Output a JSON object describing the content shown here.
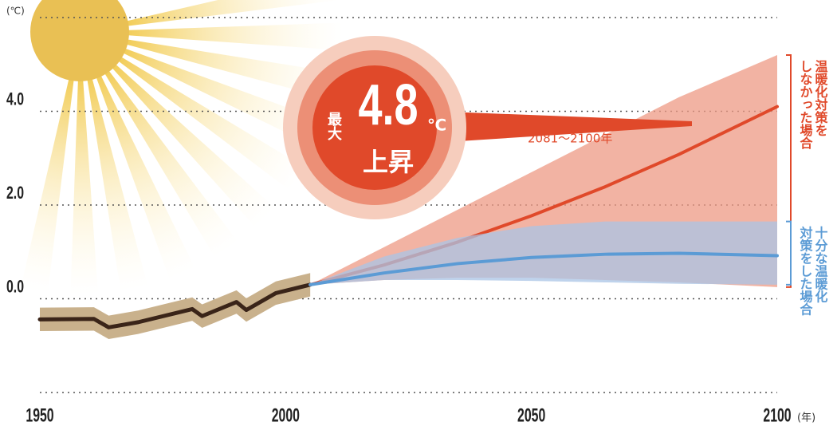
{
  "chart_data": {
    "type": "line",
    "y_unit_label": "(℃)",
    "x_unit_label": "(年)",
    "xlim": [
      1950,
      2100
    ],
    "xticks": [
      1950,
      2000,
      2050,
      2100
    ],
    "ylim": [
      -2,
      6
    ],
    "yticks": [
      {
        "value": 0,
        "label": "0.0"
      },
      {
        "value": 2,
        "label": "2.0"
      },
      {
        "value": 4,
        "label": "4.0"
      }
    ],
    "grid": true,
    "series": [
      {
        "color": "#3a2418",
        "band_color": "#c9b18c",
        "x": [
          1950,
          1961,
          1964,
          1970,
          1981,
          1983,
          1990,
          1992,
          1998,
          2005
        ],
        "values": [
          -0.44,
          -0.43,
          -0.61,
          -0.5,
          -0.22,
          -0.37,
          -0.07,
          -0.24,
          0.12,
          0.3
        ],
        "lower": [
          -0.69,
          -0.68,
          -0.86,
          -0.75,
          -0.47,
          -0.62,
          -0.32,
          -0.49,
          -0.13,
          0.05
        ],
        "upper": [
          -0.19,
          -0.18,
          -0.36,
          -0.25,
          0.03,
          -0.12,
          0.18,
          0.01,
          0.37,
          0.55
        ]
      },
      {
        "name": [
          "温暖化対策を",
          "しなかった場合"
        ],
        "color": "#e0492a",
        "band_color": "#ee9a84",
        "x": [
          2005,
          2020,
          2035,
          2050,
          2065,
          2080,
          2100
        ],
        "values": [
          0.3,
          0.72,
          1.21,
          1.77,
          2.39,
          3.08,
          4.1
        ],
        "lower": [
          0.3,
          0.4,
          0.45,
          0.45,
          0.4,
          0.35,
          0.25
        ],
        "upper": [
          0.3,
          1.1,
          1.9,
          2.7,
          3.5,
          4.3,
          5.2
        ]
      },
      {
        "name": [
          "十分な温暖化",
          "対策をした場合"
        ],
        "color": "#5b9bd5",
        "band_color": "#a9c4e6",
        "x": [
          2005,
          2020,
          2035,
          2050,
          2065,
          2080,
          2100
        ],
        "values": [
          0.3,
          0.55,
          0.75,
          0.88,
          0.95,
          0.97,
          0.92
        ],
        "lower": [
          0.3,
          0.4,
          0.4,
          0.38,
          0.35,
          0.32,
          0.3
        ],
        "upper": [
          0.3,
          0.9,
          1.3,
          1.55,
          1.65,
          1.65,
          1.65
        ]
      }
    ],
    "annotation": {
      "prefix": "最大",
      "value": "4.8",
      "unit": "℃",
      "suffix": "上昇",
      "period": "2081〜2100年"
    }
  }
}
